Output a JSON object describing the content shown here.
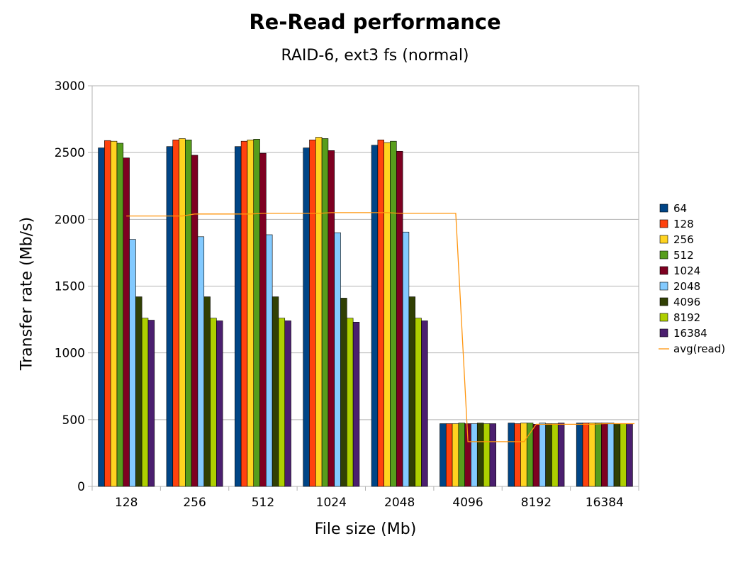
{
  "chart_data": {
    "type": "bar",
    "title": "Re-Read performance",
    "subtitle": "RAID-6, ext3 fs (normal)",
    "xlabel": "File size (Mb)",
    "ylabel": "Transfer rate (Mb/s)",
    "ylim": [
      0,
      3000
    ],
    "yticks": [
      "0",
      "500",
      "1000",
      "1500",
      "2000",
      "2500",
      "3000"
    ],
    "grid": "horizontal",
    "legend_position": "right",
    "categories": [
      "128",
      "256",
      "512",
      "1024",
      "2048",
      "4096",
      "8192",
      "16384"
    ],
    "series": [
      {
        "name": "64",
        "color": "#004586",
        "values": [
          2535,
          2545,
          2545,
          2535,
          2555,
          470,
          475,
          475
        ]
      },
      {
        "name": "128",
        "color": "#ff420e",
        "values": [
          2590,
          2595,
          2585,
          2595,
          2595,
          470,
          470,
          475
        ]
      },
      {
        "name": "256",
        "color": "#ffd320",
        "values": [
          2585,
          2605,
          2595,
          2615,
          2575,
          470,
          475,
          475
        ]
      },
      {
        "name": "512",
        "color": "#579d1c",
        "values": [
          2570,
          2595,
          2600,
          2605,
          2585,
          475,
          475,
          475
        ]
      },
      {
        "name": "1024",
        "color": "#7e0021",
        "values": [
          2460,
          2480,
          2495,
          2515,
          2510,
          470,
          465,
          475
        ]
      },
      {
        "name": "2048",
        "color": "#83caff",
        "values": [
          1850,
          1870,
          1885,
          1900,
          1905,
          470,
          475,
          475
        ]
      },
      {
        "name": "4096",
        "color": "#314004",
        "values": [
          1420,
          1420,
          1420,
          1410,
          1420,
          475,
          470,
          470
        ]
      },
      {
        "name": "8192",
        "color": "#aecf00",
        "values": [
          1260,
          1260,
          1260,
          1260,
          1260,
          470,
          470,
          470
        ]
      },
      {
        "name": "16384",
        "color": "#4b1f6f",
        "values": [
          1245,
          1240,
          1240,
          1230,
          1240,
          470,
          475,
          470
        ]
      }
    ],
    "line": {
      "name": "avg(read)",
      "color": "#ff950e",
      "values": [
        2025,
        2040,
        2045,
        2050,
        2045,
        335,
        465,
        470
      ]
    }
  }
}
